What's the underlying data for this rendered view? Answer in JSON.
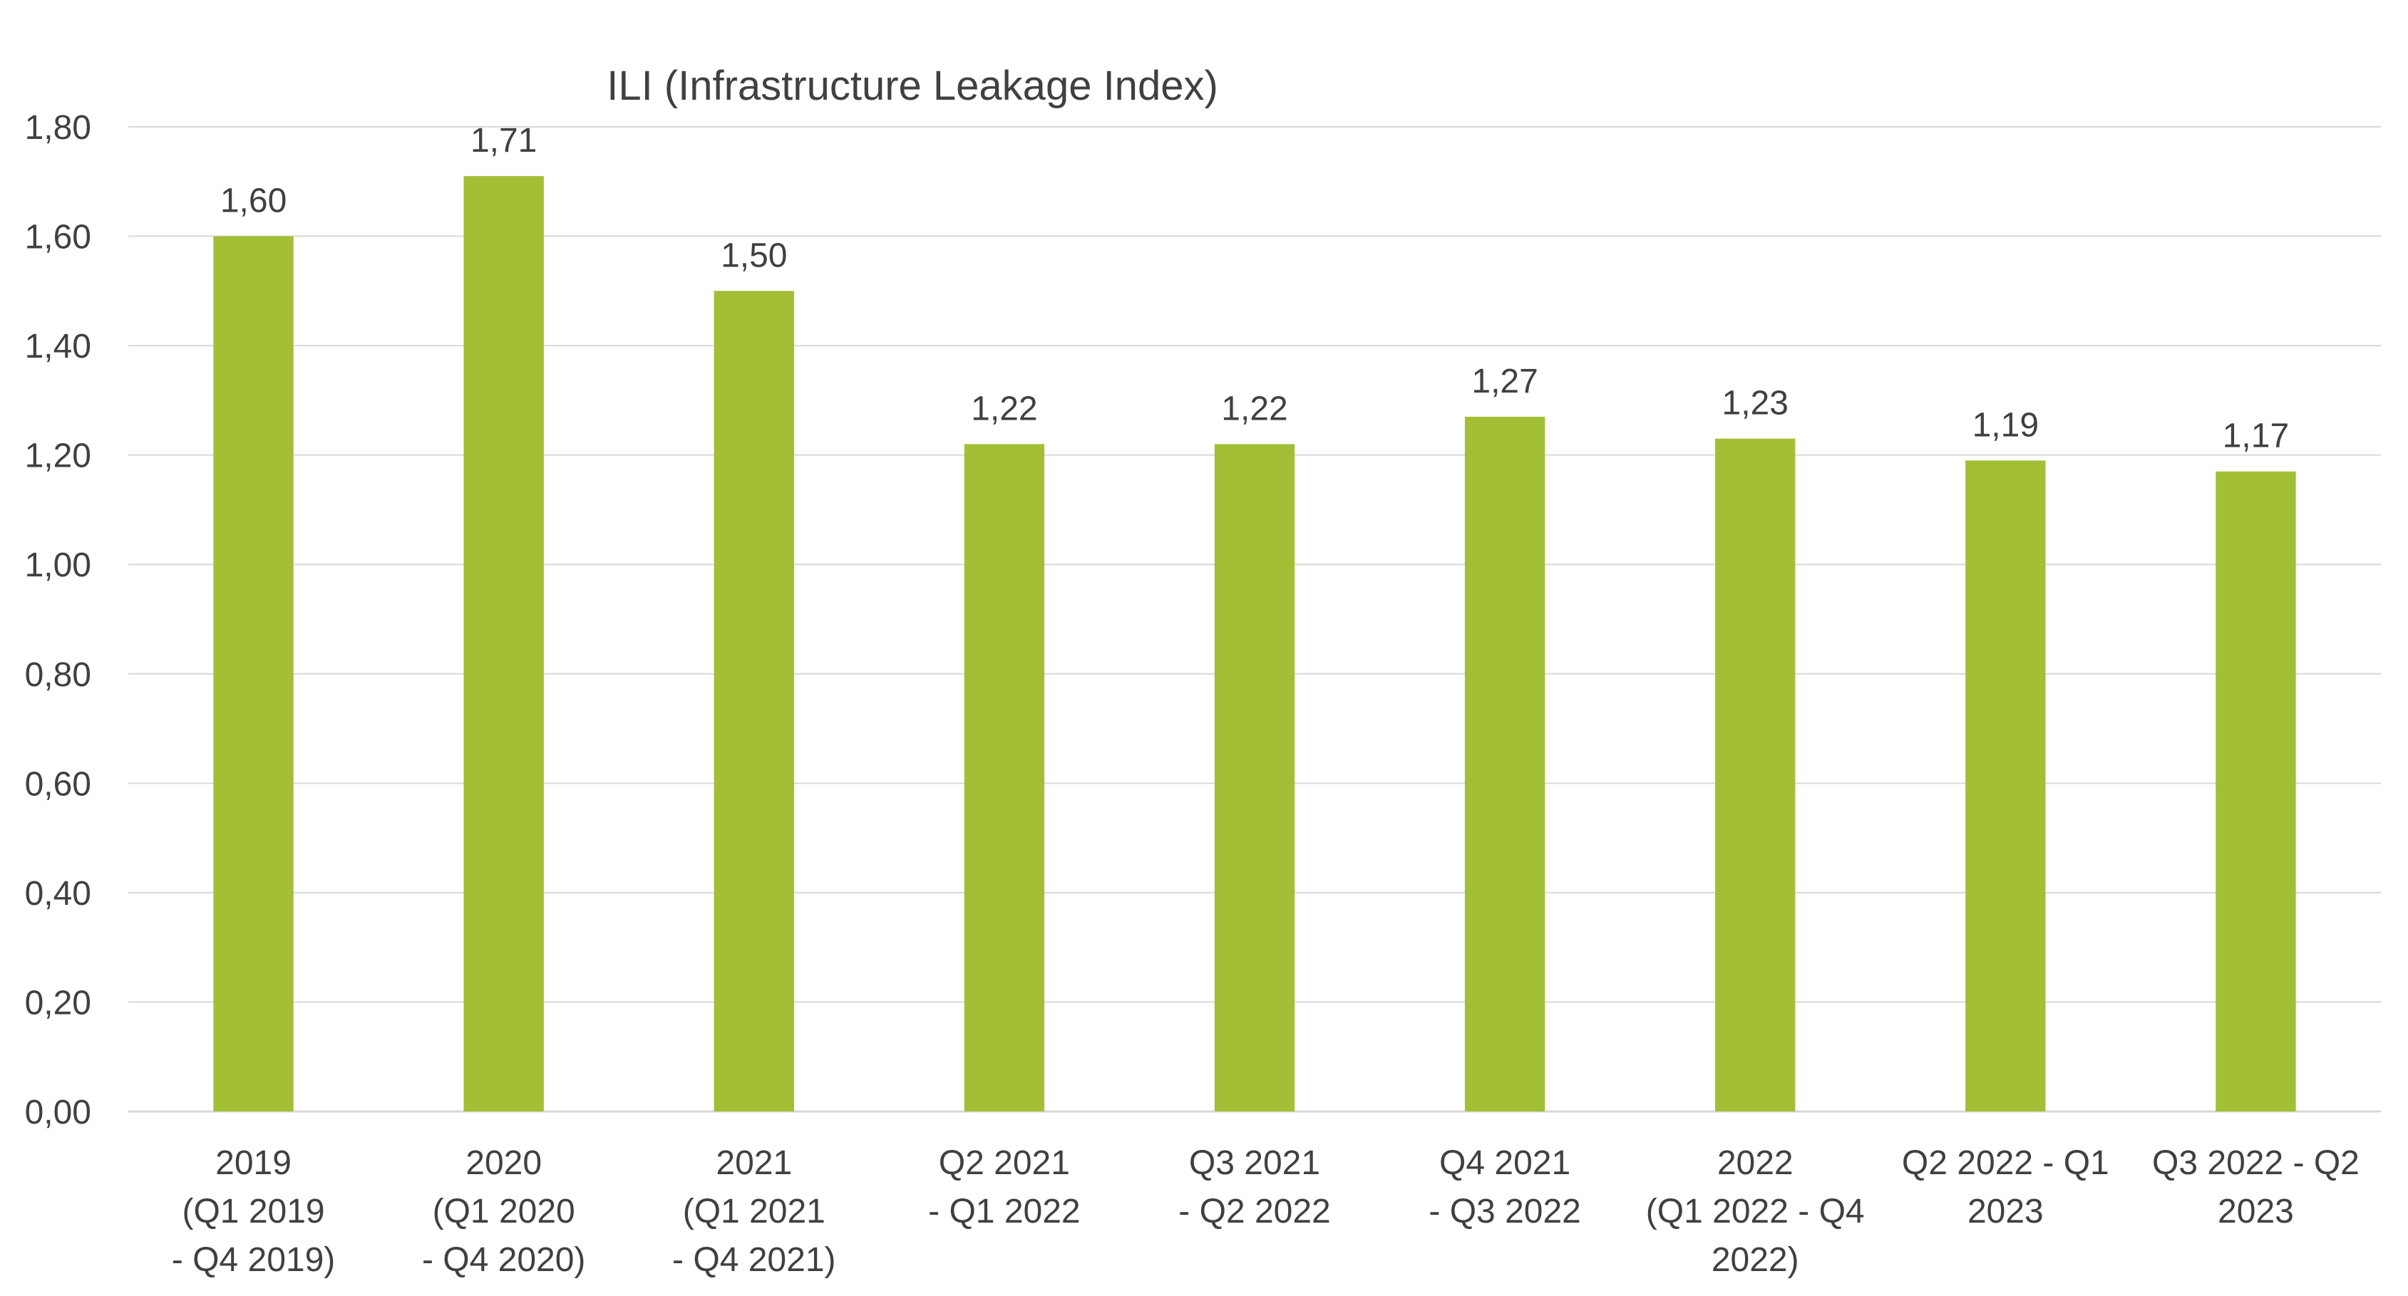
{
  "chart_data": {
    "type": "bar",
    "title": "ILI (Infrastructure Leakage Index)",
    "xlabel": "",
    "ylabel": "",
    "ylim": [
      0,
      1.8
    ],
    "ytick_step": 0.2,
    "yticks": [
      "0,00",
      "0,20",
      "0,40",
      "0,60",
      "0,80",
      "1,00",
      "1,20",
      "1,40",
      "1,60",
      "1,80"
    ],
    "grid": true,
    "legend": "none",
    "bar_color": "#a2bf36",
    "categories": [
      [
        "2019",
        "(Q1 2019",
        "- Q4 2019)"
      ],
      [
        "2020",
        "(Q1 2020",
        "- Q4 2020)"
      ],
      [
        "2021",
        "(Q1 2021",
        "- Q4 2021)"
      ],
      [
        "Q2 2021",
        "- Q1 2022"
      ],
      [
        "Q3 2021",
        "- Q2 2022"
      ],
      [
        "Q4 2021",
        "- Q3 2022"
      ],
      [
        "2022",
        "(Q1 2022 - Q4",
        "2022)"
      ],
      [
        "Q2 2022 - Q1",
        "2023"
      ],
      [
        "Q3 2022 - Q2",
        "2023"
      ]
    ],
    "values": [
      1.6,
      1.71,
      1.5,
      1.22,
      1.22,
      1.27,
      1.23,
      1.19,
      1.17
    ],
    "data_labels": [
      "1,60",
      "1,71",
      "1,50",
      "1,22",
      "1,22",
      "1,27",
      "1,23",
      "1,19",
      "1,17"
    ]
  }
}
